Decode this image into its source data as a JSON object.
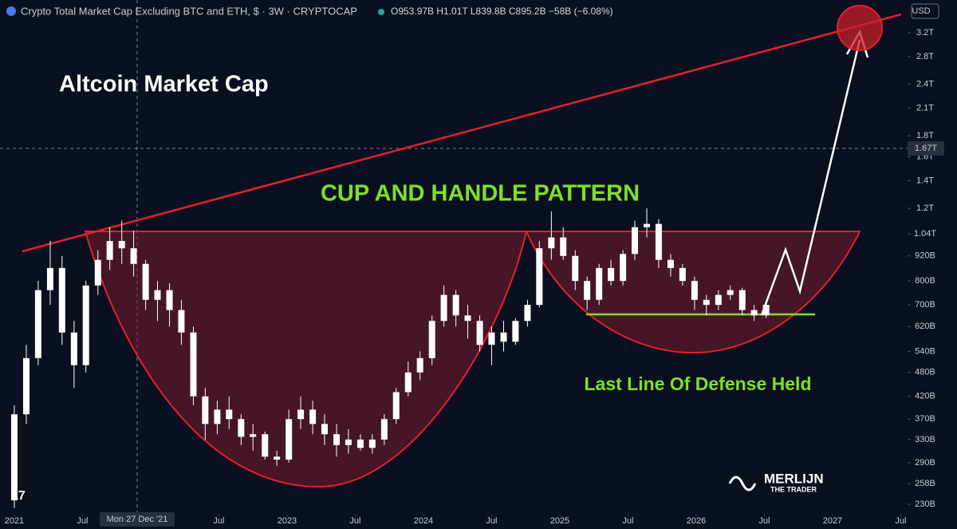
{
  "chart_data": {
    "type": "candlestick",
    "header": "Crypto Total Market Cap Excluding BTC and ETH, $ · 3W · CRYPTOCAP",
    "ohlc_header": "O953.97B H1.01T L839.8B C895.2B −58B (−6.08%)",
    "currency": "USD",
    "title": "Altcoin Market Cap",
    "pattern_label": "CUP AND HANDLE PATTERN",
    "support_label": "Last Line Of Defense Held",
    "brand": "MERLIJN",
    "brand_sub": "THE TRADER",
    "crosshair_date": "Mon 27 Dec '21",
    "crosshair_price": "1.67T",
    "color": "#ffffff",
    "log_scale": true,
    "grid": false,
    "xlim": [
      2020.895,
      2027.55
    ],
    "ylim": [
      217,
      3840
    ],
    "xticks": [
      {
        "value": 2021,
        "label": "2021"
      },
      {
        "value": 2021.5,
        "label": "Jul"
      },
      {
        "value": 2022.5,
        "label": "Jul"
      },
      2023,
      {
        "value": 2023.5,
        "label": "Jul"
      },
      2024,
      {
        "value": 2024.5,
        "label": "Jul"
      },
      2025,
      {
        "value": 2025.5,
        "label": "Jul"
      },
      2026,
      {
        "value": 2026.5,
        "label": "Jul"
      },
      2027,
      {
        "value": 2027.5,
        "label": "Jul"
      }
    ],
    "yticks": [
      {
        "value": 3200,
        "label": "3.2T"
      },
      {
        "value": 2800,
        "label": "2.8T"
      },
      {
        "value": 2400,
        "label": "2.4T"
      },
      {
        "value": 2100,
        "label": "2.1T"
      },
      {
        "value": 1800,
        "label": "1.8T"
      },
      {
        "value": 1600,
        "label": "1.6T"
      },
      {
        "value": 1400,
        "label": "1.4T"
      },
      {
        "value": 1200,
        "label": "1.2T"
      },
      {
        "value": 1040,
        "label": "1.04T"
      },
      {
        "value": 920,
        "label": "920B"
      },
      {
        "value": 800,
        "label": "800B"
      },
      {
        "value": 700,
        "label": "700B"
      },
      {
        "value": 620,
        "label": "620B"
      },
      {
        "value": 540,
        "label": "540B"
      },
      {
        "value": 480,
        "label": "480B"
      },
      {
        "value": 420,
        "label": "420B"
      },
      {
        "value": 370,
        "label": "370B"
      },
      {
        "value": 330,
        "label": "330B"
      },
      {
        "value": 290,
        "label": "290B"
      },
      {
        "value": 258,
        "label": "258B"
      },
      {
        "value": 230,
        "label": "230B"
      }
    ],
    "x": [
      2021,
      2021.088,
      2021.175,
      2021.263,
      2021.35,
      2021.438,
      2021.525,
      2021.613,
      2021.7,
      2021.788,
      2021.875,
      2021.963,
      2022.05,
      2022.138,
      2022.225,
      2022.313,
      2022.4,
      2022.488,
      2022.575,
      2022.663,
      2022.75,
      2022.838,
      2022.925,
      2023.013,
      2023.1,
      2023.188,
      2023.275,
      2023.363,
      2023.45,
      2023.538,
      2023.625,
      2023.713,
      2023.8,
      2023.888,
      2023.975,
      2024.063,
      2024.15,
      2024.238,
      2024.325,
      2024.413,
      2024.5,
      2024.588,
      2024.675,
      2024.763,
      2024.85,
      2024.938,
      2025.025,
      2025.113,
      2025.2,
      2025.288,
      2025.375,
      2025.463,
      2025.55,
      2025.638,
      2025.725,
      2025.813,
      2025.9,
      2025.988,
      2026.075,
      2026.163,
      2026.25,
      2026.338,
      2026.425,
      2026.513
    ],
    "ohlc": [
      [
        235,
        400,
        225,
        380
      ],
      [
        380,
        560,
        360,
        520
      ],
      [
        520,
        800,
        500,
        760
      ],
      [
        760,
        1000,
        700,
        860
      ],
      [
        860,
        920,
        560,
        600
      ],
      [
        600,
        640,
        440,
        500
      ],
      [
        500,
        800,
        480,
        780
      ],
      [
        780,
        950,
        740,
        900
      ],
      [
        900,
        1080,
        850,
        1000
      ],
      [
        1000,
        1120,
        880,
        960
      ],
      [
        960,
        1060,
        820,
        880
      ],
      [
        880,
        900,
        680,
        720
      ],
      [
        720,
        800,
        640,
        760
      ],
      [
        760,
        790,
        620,
        680
      ],
      [
        680,
        720,
        560,
        600
      ],
      [
        600,
        620,
        400,
        420
      ],
      [
        420,
        440,
        330,
        360
      ],
      [
        360,
        410,
        340,
        390
      ],
      [
        390,
        420,
        350,
        370
      ],
      [
        370,
        380,
        320,
        335
      ],
      [
        335,
        360,
        310,
        340
      ],
      [
        340,
        345,
        295,
        300
      ],
      [
        300,
        310,
        285,
        295
      ],
      [
        295,
        390,
        290,
        370
      ],
      [
        370,
        420,
        350,
        390
      ],
      [
        390,
        410,
        340,
        360
      ],
      [
        360,
        380,
        320,
        340
      ],
      [
        340,
        360,
        300,
        320
      ],
      [
        320,
        350,
        305,
        330
      ],
      [
        330,
        340,
        310,
        315
      ],
      [
        315,
        340,
        305,
        330
      ],
      [
        330,
        380,
        320,
        370
      ],
      [
        370,
        440,
        360,
        430
      ],
      [
        430,
        510,
        420,
        480
      ],
      [
        480,
        540,
        460,
        520
      ],
      [
        520,
        660,
        500,
        640
      ],
      [
        640,
        780,
        620,
        740
      ],
      [
        740,
        760,
        620,
        660
      ],
      [
        660,
        700,
        580,
        640
      ],
      [
        640,
        660,
        540,
        560
      ],
      [
        560,
        620,
        500,
        600
      ],
      [
        600,
        640,
        540,
        570
      ],
      [
        570,
        650,
        560,
        640
      ],
      [
        640,
        720,
        620,
        700
      ],
      [
        700,
        1000,
        690,
        960
      ],
      [
        960,
        1180,
        900,
        1020
      ],
      [
        1020,
        1080,
        900,
        920
      ],
      [
        920,
        950,
        760,
        800
      ],
      [
        800,
        820,
        680,
        720
      ],
      [
        720,
        880,
        700,
        860
      ],
      [
        860,
        900,
        780,
        800
      ],
      [
        800,
        950,
        780,
        930
      ],
      [
        930,
        1120,
        900,
        1080
      ],
      [
        1080,
        1200,
        1020,
        1100
      ],
      [
        1100,
        1130,
        860,
        900
      ],
      [
        900,
        930,
        820,
        860
      ],
      [
        860,
        880,
        780,
        800
      ],
      [
        800,
        820,
        680,
        720
      ],
      [
        720,
        740,
        660,
        700
      ],
      [
        700,
        760,
        680,
        740
      ],
      [
        740,
        780,
        720,
        760
      ],
      [
        760,
        770,
        660,
        680
      ],
      [
        680,
        700,
        640,
        660
      ],
      [
        660,
        720,
        650,
        700
      ]
    ]
  }
}
